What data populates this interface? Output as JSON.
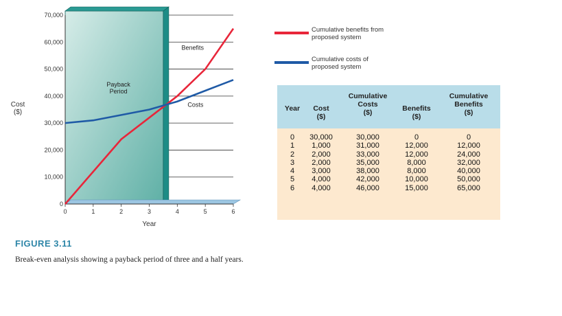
{
  "chart_data": {
    "type": "line",
    "ylabel": "Cost\n($)",
    "xlabel": "Year",
    "xlim": [
      0,
      6
    ],
    "ylim": [
      0,
      70000
    ],
    "x_ticks": [
      "0",
      "1",
      "2",
      "3",
      "4",
      "5",
      "6"
    ],
    "y_ticks": [
      "0",
      "10,000",
      "20,000",
      "30,000",
      "40,000",
      "50,000",
      "60,000",
      "70,000"
    ],
    "x": [
      0,
      1,
      2,
      3,
      4,
      5,
      6
    ],
    "series": [
      {
        "name": "Cumulative benefits from proposed system",
        "color": "#e8263a",
        "values": [
          0,
          12000,
          24000,
          32000,
          40000,
          50000,
          65000
        ]
      },
      {
        "name": "Cumulative costs of proposed system",
        "color": "#1f5aa6",
        "values": [
          30000,
          31000,
          33000,
          35000,
          38000,
          42000,
          46000
        ]
      }
    ],
    "payback_region": {
      "from": 0,
      "to": 3.5,
      "label": "Payback\nPeriod",
      "color": "#1d8c86"
    },
    "annotations": {
      "benefits": "Benefits",
      "costs": "Costs"
    },
    "grid": true
  },
  "legend": {
    "benefits": {
      "label": "Cumulative benefits from\nproposed system",
      "color": "#e8263a"
    },
    "costs": {
      "label": "Cumulative costs of\nproposed system",
      "color": "#1f5aa6"
    }
  },
  "table": {
    "headers": {
      "year": "Year",
      "cost": "Cost\n($)",
      "cum_costs": "Cumulative\nCosts\n($)",
      "benefits": "Benefits\n($)",
      "cum_benefits": "Cumulative\nBenefits\n($)"
    },
    "columns": {
      "year": [
        "0",
        "1",
        "2",
        "3",
        "4",
        "5",
        "6"
      ],
      "cost": [
        "30,000",
        "1,000",
        "2,000",
        "2,000",
        "3,000",
        "4,000",
        "4,000"
      ],
      "cum_costs": [
        "30,000",
        "31,000",
        "33,000",
        "35,000",
        "38,000",
        "42,000",
        "46,000"
      ],
      "benefits": [
        "0",
        "12,000",
        "12,000",
        "8,000",
        "8,000",
        "10,000",
        "15,000"
      ],
      "cum_benefits": [
        "0",
        "12,000",
        "24,000",
        "32,000",
        "40,000",
        "50,000",
        "65,000"
      ]
    }
  },
  "figure": {
    "label": "FIGURE 3.11",
    "caption": "Break-even analysis showing a payback period of three and a half years."
  }
}
